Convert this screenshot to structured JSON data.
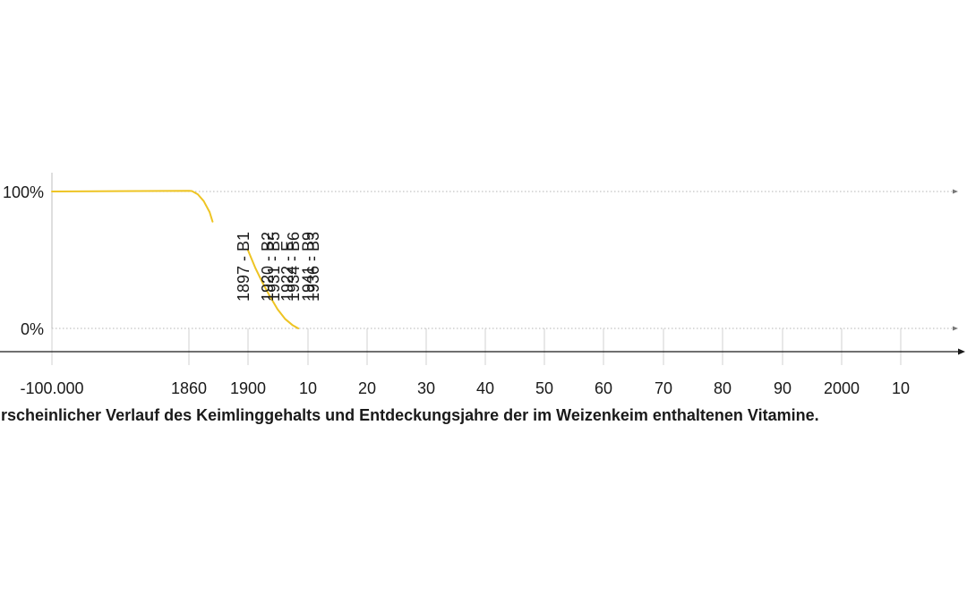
{
  "chart_data": {
    "type": "line",
    "caption": "rscheinlicher Verlauf des Keimlinggehalts und Entdeckungsjahre der im Weizenkeim enthaltenen Vitamine.",
    "x_tick_labels": [
      "-100.000",
      "1860",
      "1900",
      "10",
      "20",
      "30",
      "40",
      "50",
      "60",
      "70",
      "80",
      "90",
      "2000",
      "10"
    ],
    "y_tick_labels": [
      "100%",
      "0%"
    ],
    "ylim": [
      0,
      100
    ],
    "grid": true,
    "series": [
      {
        "color": "#eec423",
        "segments": [
          {
            "x": [
              -100000,
              1860,
              1862,
              1866,
              1870,
              1874,
              1876
            ],
            "y": [
              100,
              100.5,
              100.3,
              98,
              93,
              85,
              78
            ]
          },
          {
            "x": [
              1900,
              1905,
              1910,
              1915,
              1920,
              1925,
              1930,
              1934
            ],
            "y": [
              57,
              44,
              33,
              23,
              14,
              7,
              2.5,
              0
            ]
          }
        ]
      }
    ],
    "vitamin_labels": [
      {
        "x": 1897,
        "lines": [
          "1897 - B1"
        ]
      },
      {
        "x": 1920,
        "lines": [
          "1920 - B2",
          "1922 - E"
        ]
      },
      {
        "x": 1931,
        "lines": [
          "1931 - B5",
          "1934 - B6",
          "1936 - B3"
        ]
      },
      {
        "x": 1941,
        "lines": [
          "1941 - B9"
        ]
      }
    ]
  }
}
